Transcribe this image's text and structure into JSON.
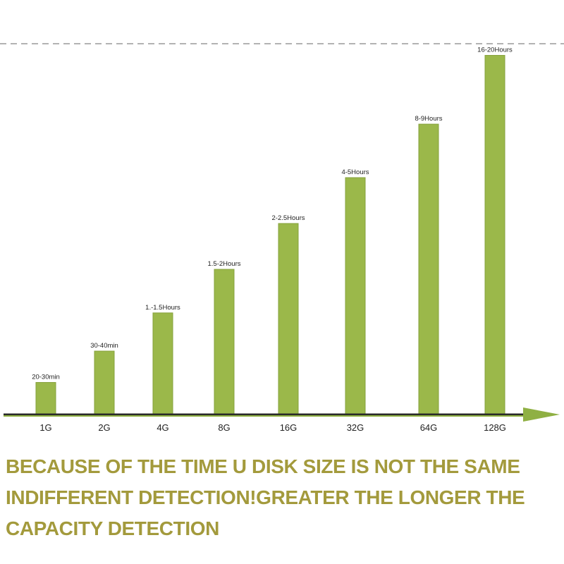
{
  "chart_data": {
    "type": "bar",
    "categories": [
      "1G",
      "2G",
      "4G",
      "8G",
      "16G",
      "32G",
      "64G",
      "128G"
    ],
    "data_labels": [
      "20-30min",
      "30-40min",
      "1.-1.5Hours",
      "1.5-2Hours",
      "2-2.5Hours",
      "4-5Hours",
      "8-9Hours",
      "16-20Hours"
    ],
    "values": [
      0.42,
      0.83,
      1.33,
      1.9,
      2.5,
      3.1,
      3.8,
      4.7
    ],
    "title": "",
    "xlabel": "",
    "ylabel": "",
    "ylim": [
      0,
      5
    ],
    "grid": false,
    "legend": "none",
    "colors": {
      "bar": "#9bb84a",
      "bar_edge": "#86a23c",
      "axis": "#8fb043",
      "caption": "#a39a3c",
      "dashed_line": "#9a9a9a"
    }
  },
  "caption": {
    "lines": [
      "BECAUSE OF THE TIME U DISK SIZE IS NOT THE SAME",
      "INDIFFERENT DETECTION!GREATER THE LONGER THE",
      "CAPACITY DETECTION"
    ]
  }
}
